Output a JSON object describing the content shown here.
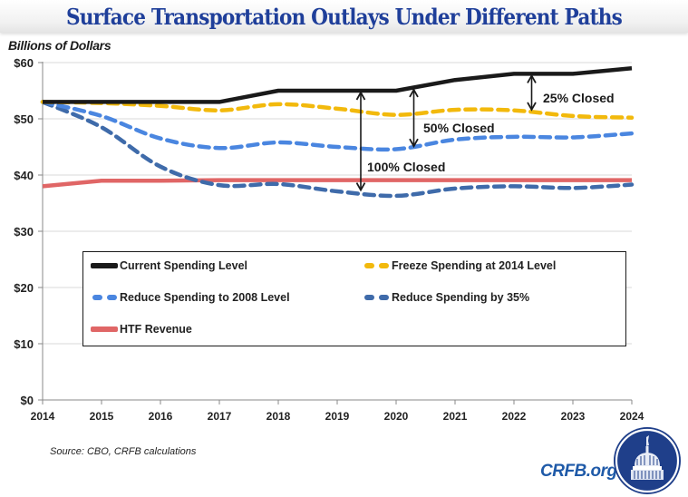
{
  "header": {
    "title": "Surface Transportation Outlays Under Different Paths"
  },
  "units_label": "Billions of Dollars",
  "source": "Source: CBO, CRFB calculations",
  "brand": {
    "site": "CRFB.org",
    "logo_icon": "capitol-dome-seal-icon",
    "color": "#1f5aa8"
  },
  "chart_data": {
    "type": "line",
    "title": "Surface Transportation Outlays Under Different Paths",
    "xlabel": "",
    "ylabel": "Billions of Dollars",
    "x": [
      2014,
      2015,
      2016,
      2017,
      2018,
      2019,
      2020,
      2021,
      2022,
      2023,
      2024
    ],
    "xticks": [
      "2014",
      "2015",
      "2016",
      "2017",
      "2018",
      "2019",
      "2020",
      "2021",
      "2022",
      "2023",
      "2024"
    ],
    "ylim": [
      0,
      60
    ],
    "yticks": [
      0,
      10,
      20,
      30,
      40,
      50,
      60
    ],
    "ytick_labels": [
      "$0",
      "$10",
      "$20",
      "$30",
      "$40",
      "$50",
      "$60"
    ],
    "grid": true,
    "legend_position": "center-bottom-inside",
    "series": [
      {
        "name": "Current Spending Level",
        "color": "#1a1a1a",
        "style": "solid",
        "values": [
          53,
          53,
          53,
          53,
          55,
          55,
          55,
          56.9,
          58,
          58,
          59
        ]
      },
      {
        "name": "Freeze Spending at 2014 Level",
        "color": "#f2b90c",
        "style": "dashed",
        "values": [
          53,
          52.8,
          52.3,
          51.5,
          52.6,
          51.8,
          50.7,
          51.6,
          51.5,
          50.5,
          50.2
        ]
      },
      {
        "name": "Reduce Spending to 2008 Level",
        "color": "#4a86e0",
        "style": "dashed",
        "values": [
          53,
          50.5,
          46.5,
          44.8,
          45.8,
          45.0,
          44.6,
          46.3,
          46.8,
          46.7,
          47.4
        ]
      },
      {
        "name": "Reduce Spending by 35%",
        "color": "#3f6baa",
        "style": "dashed",
        "values": [
          53,
          48.5,
          41.5,
          38.2,
          38.4,
          37.1,
          36.3,
          37.6,
          38.0,
          37.7,
          38.3
        ]
      },
      {
        "name": "HTF Revenue",
        "color": "#e06666",
        "style": "solid",
        "values": [
          38.0,
          39.0,
          39.0,
          39.1,
          39.1,
          39.1,
          39.1,
          39.1,
          39.1,
          39.1,
          39.1
        ]
      }
    ],
    "annotations": [
      {
        "label": "100% Closed",
        "x": 2019.4,
        "from_series": "Current Spending Level",
        "to_series": "Reduce Spending by 35%",
        "y_from": 55,
        "y_to": 37.0
      },
      {
        "label": "50% Closed",
        "x": 2020.3,
        "from_series": "Current Spending Level",
        "to_series": "Reduce Spending to 2008 Level",
        "y_from": 55.5,
        "y_to": 44.8
      },
      {
        "label": "25% Closed",
        "x": 2022.3,
        "from_series": "Current Spending Level",
        "to_series": "Freeze Spending at 2014 Level",
        "y_from": 58,
        "y_to": 51.3
      }
    ]
  }
}
